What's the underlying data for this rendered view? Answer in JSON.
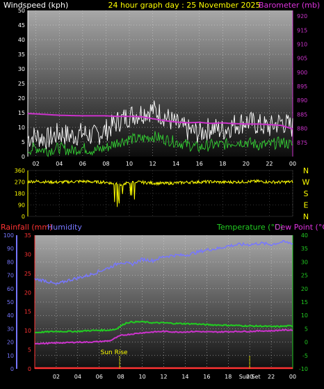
{
  "header": {
    "left_label": "Windspeed (kph)",
    "title": "24 hour graph day : 25 November 2025",
    "right_label": "Barometer (mb)"
  },
  "colors": {
    "wind_gust": "#ffffff",
    "wind_avg": "#33cc33",
    "barometer": "#cc33cc",
    "direction": "#ffff00",
    "humidity": "#7777ff",
    "rain": "#ff3333",
    "temperature": "#22cc22",
    "dewpoint": "#cc33cc",
    "sun_marker": "#ffff00"
  },
  "compass": [
    "N",
    "W",
    "S",
    "E",
    "N"
  ],
  "sun": {
    "rise_label": "Sun Rise",
    "set_label": "Sun Set",
    "rise_hour": 7.9,
    "set_hour": 20.0
  },
  "bottom_labels": {
    "rainfall": "Rainfall (mm)",
    "humidity": "Humidity",
    "temperature": "Temperature (°C)",
    "dewpoint": "Dew Point (°C)"
  },
  "chart_data": [
    {
      "type": "line",
      "name": "wind-barometer",
      "x_ticks": [
        "02",
        "04",
        "06",
        "08",
        "10",
        "12",
        "14",
        "16",
        "18",
        "20",
        "22",
        "00"
      ],
      "left_axis": {
        "label": "Windspeed (kph)",
        "ylim": [
          0,
          50
        ],
        "ticks": [
          0,
          5,
          10,
          15,
          20,
          25,
          30,
          35,
          40,
          45,
          50
        ]
      },
      "right_axis": {
        "label": "Barometer (mb)",
        "ylim": [
          870,
          922
        ],
        "ticks": [
          875,
          880,
          885,
          890,
          895,
          900,
          905,
          910,
          915,
          920
        ]
      },
      "series": [
        {
          "name": "Barometer",
          "axis": "right",
          "x": [
            0,
            2,
            4,
            6,
            8,
            9,
            10,
            11,
            12,
            13,
            14,
            15,
            16,
            17,
            18,
            19,
            20,
            21,
            22,
            23,
            23.5,
            24
          ],
          "y": [
            885.5,
            885.2,
            884.7,
            884.5,
            884.5,
            884.3,
            884.3,
            884.2,
            883.5,
            882.8,
            882.3,
            882.0,
            882.2,
            881.8,
            882.0,
            881.7,
            881.6,
            881.6,
            881.4,
            881.1,
            880.5,
            879.8
          ]
        },
        {
          "name": "Gust",
          "axis": "left",
          "x": [
            0,
            1,
            2,
            3,
            4,
            5,
            6,
            7,
            8,
            9,
            10,
            11,
            12,
            13,
            14,
            15,
            16,
            17,
            18,
            19,
            20,
            21,
            22,
            23,
            24
          ],
          "y": [
            5,
            6,
            7,
            6,
            8,
            7,
            8,
            7,
            9,
            12,
            14,
            15,
            16,
            14,
            11,
            9,
            8,
            10,
            9,
            11,
            12,
            11,
            10,
            12,
            10
          ]
        },
        {
          "name": "Average",
          "axis": "left",
          "x": [
            0,
            1,
            2,
            3,
            4,
            5,
            6,
            7,
            8,
            9,
            10,
            11,
            12,
            13,
            14,
            15,
            16,
            17,
            18,
            19,
            20,
            21,
            22,
            23,
            24
          ],
          "y": [
            1,
            2,
            3,
            2,
            3,
            2,
            3,
            2,
            3,
            5,
            6,
            6,
            7,
            6,
            5,
            4,
            3,
            4,
            4,
            5,
            5,
            4,
            4,
            5,
            4
          ]
        }
      ]
    },
    {
      "type": "line",
      "name": "wind-direction",
      "left_axis": {
        "ylim": [
          0,
          360
        ],
        "ticks": [
          0,
          90,
          180,
          270,
          360
        ]
      },
      "series": [
        {
          "name": "Direction",
          "x": [
            0,
            1,
            2,
            3,
            4,
            5,
            6,
            7,
            8,
            8.5,
            9,
            9.5,
            10,
            10.5,
            11,
            12,
            13,
            14,
            15,
            16,
            17,
            18,
            19,
            20,
            21,
            22,
            23,
            24
          ],
          "y": [
            270,
            272,
            275,
            270,
            268,
            272,
            275,
            270,
            268,
            260,
            250,
            255,
            265,
            270,
            268,
            262,
            258,
            262,
            268,
            270,
            272,
            268,
            270,
            272,
            275,
            270,
            268,
            272
          ]
        }
      ]
    },
    {
      "type": "line",
      "name": "rain-humidity-temperature",
      "x_ticks": [
        "02",
        "04",
        "06",
        "08",
        "10",
        "12",
        "14",
        "16",
        "18",
        "20",
        "22",
        "00"
      ],
      "humidity_axis": {
        "label": "Humidity",
        "ylim": [
          0,
          100
        ],
        "ticks": [
          0,
          10,
          20,
          30,
          40,
          50,
          60,
          70,
          80,
          90,
          100
        ]
      },
      "rain_axis": {
        "label": "Rainfall (mm)",
        "ylim": [
          0,
          35
        ],
        "ticks": [
          0,
          5,
          10,
          15,
          20,
          25,
          30,
          35
        ]
      },
      "temp_axis": {
        "label": "Temperature (°C)",
        "ylim": [
          -10,
          40
        ],
        "ticks": [
          -10,
          -5,
          0,
          5,
          10,
          15,
          20,
          25,
          30,
          35,
          40
        ]
      },
      "series": [
        {
          "name": "Humidity",
          "axis": "humidity",
          "x": [
            0,
            1,
            2,
            3,
            4,
            5,
            6,
            7,
            8,
            9,
            10,
            11,
            12,
            13,
            14,
            15,
            16,
            17,
            18,
            19,
            20,
            21,
            22,
            23,
            24
          ],
          "y": [
            67,
            66,
            63,
            66,
            68,
            70,
            73,
            76,
            80,
            78,
            82,
            81,
            84,
            85,
            85,
            87,
            89,
            90,
            92,
            93,
            93,
            94,
            93,
            95,
            94
          ]
        },
        {
          "name": "Temperature",
          "axis": "temp",
          "x": [
            0,
            1,
            2,
            3,
            4,
            5,
            6,
            7,
            7.5,
            8,
            8.5,
            9,
            10,
            11,
            12,
            13,
            14,
            15,
            16,
            17,
            18,
            19,
            20,
            21,
            22,
            23,
            24
          ],
          "y": [
            3.6,
            3.8,
            4.0,
            4.0,
            4.0,
            4.3,
            4.4,
            4.5,
            4.8,
            6.0,
            7.2,
            7.5,
            7.6,
            7.2,
            7.2,
            7.0,
            6.9,
            6.8,
            6.5,
            6.4,
            6.3,
            6.2,
            6.0,
            6.0,
            5.8,
            5.9,
            6.1
          ]
        },
        {
          "name": "Dew Point",
          "axis": "temp",
          "x": [
            0,
            1,
            2,
            3,
            4,
            5,
            6,
            7,
            7.5,
            8,
            9,
            10,
            11,
            12,
            13,
            14,
            15,
            16,
            17,
            18,
            19,
            20,
            21,
            22,
            23,
            24
          ],
          "y": [
            -0.5,
            -0.5,
            -0.3,
            -0.2,
            0,
            0,
            0.2,
            0.5,
            1.5,
            2.5,
            3.0,
            3.5,
            3.8,
            4.0,
            3.8,
            3.8,
            4.0,
            3.8,
            3.8,
            3.9,
            4.0,
            4.0,
            4.2,
            4.2,
            4.5,
            4.5
          ]
        },
        {
          "name": "Rainfall",
          "axis": "rain",
          "x": [
            0,
            24
          ],
          "y": [
            0,
            0
          ]
        }
      ]
    }
  ]
}
